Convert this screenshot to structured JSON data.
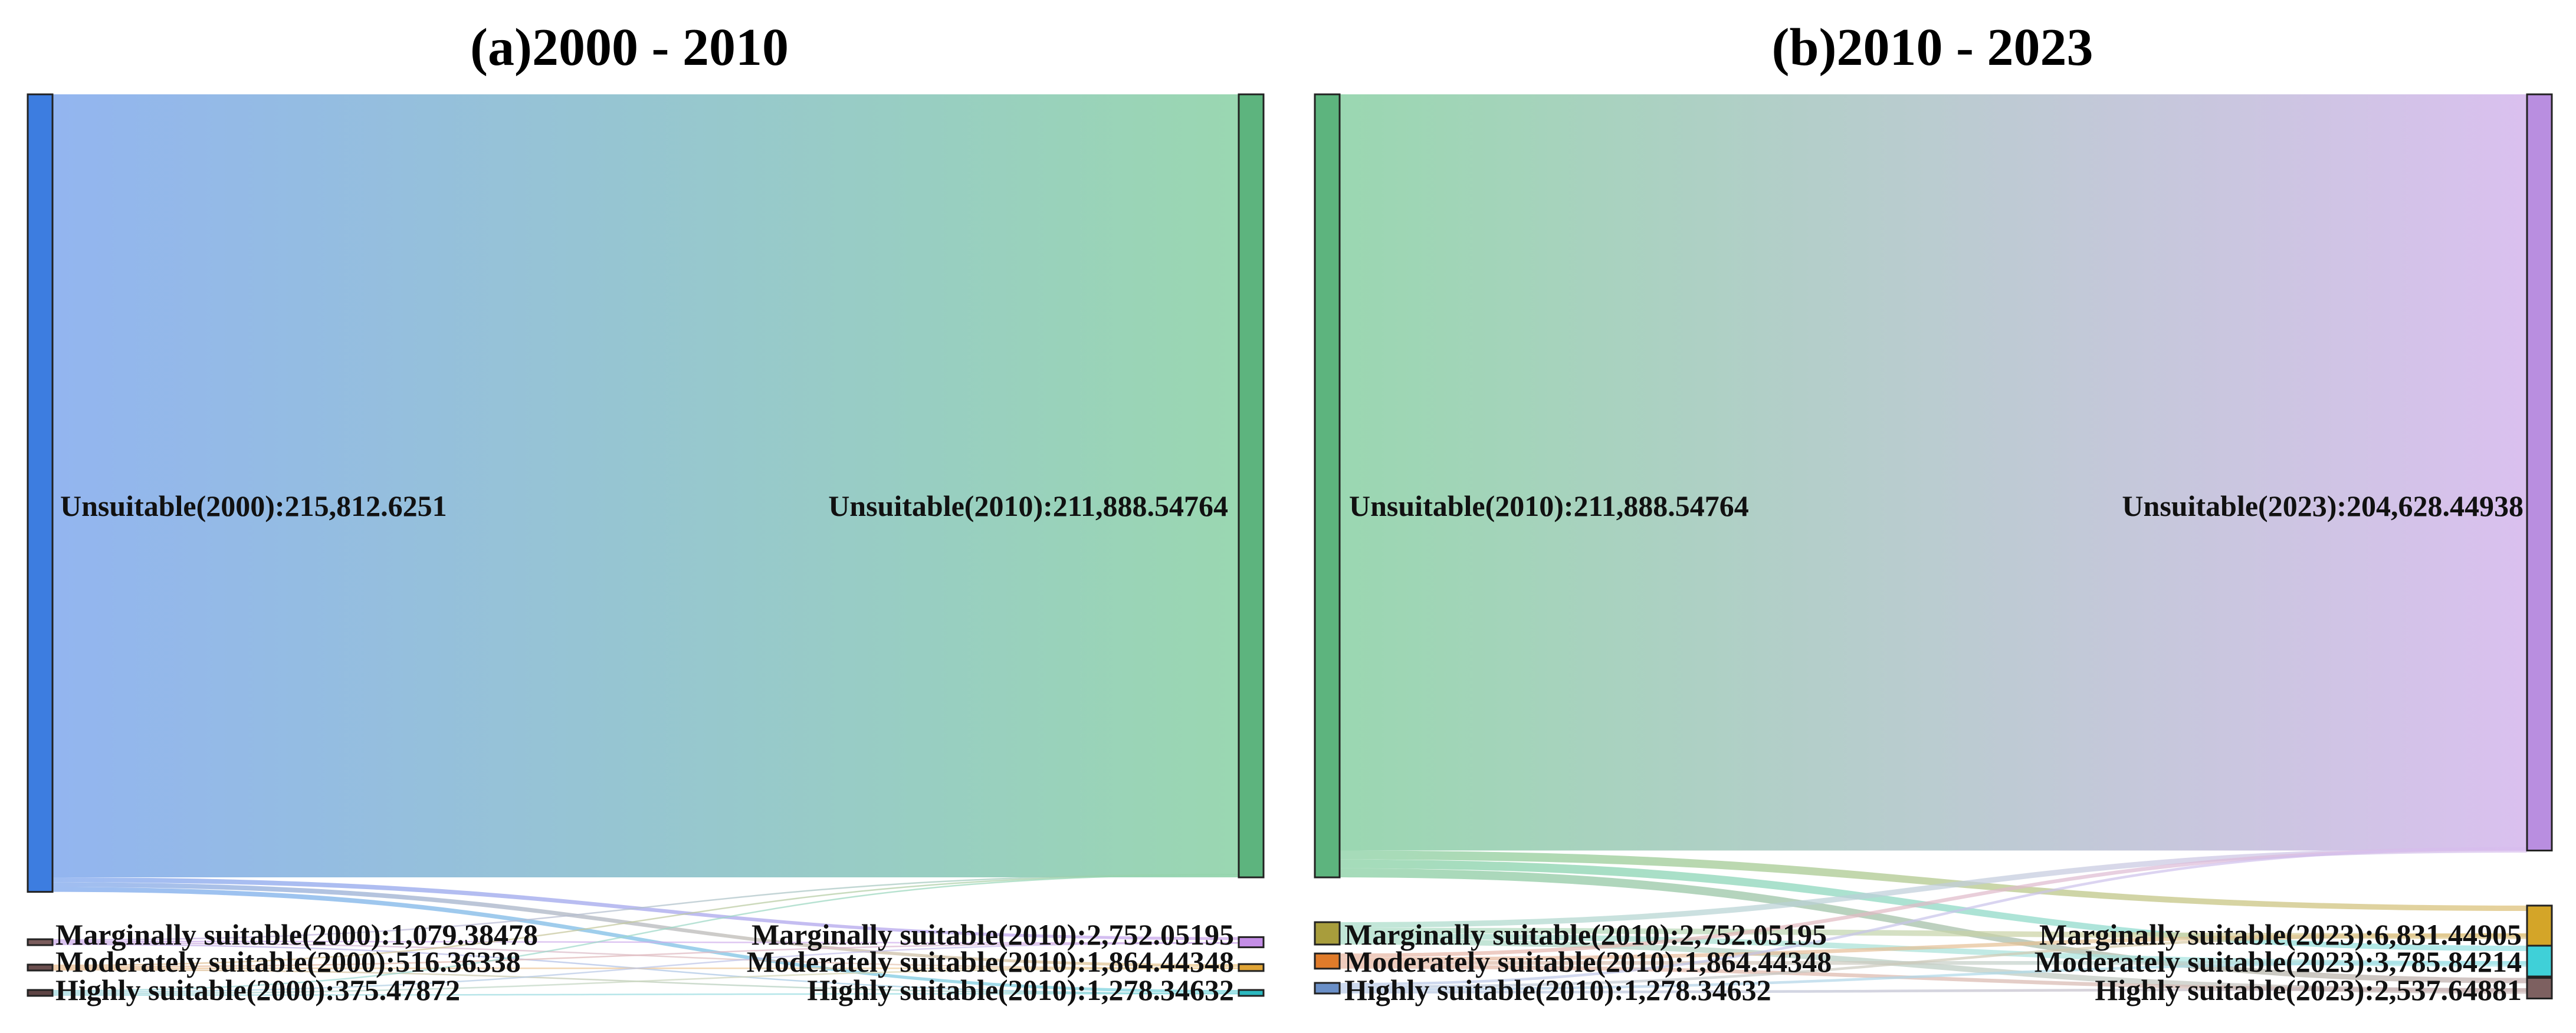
{
  "chart_data": [
    {
      "type": "sankey",
      "title": "(a)2000 - 2010",
      "left_nodes": [
        {
          "label": "Unsuitable(2000):215,812.6251",
          "value": 215812.6251,
          "color": "#3d7de0",
          "flow_color": "#8db1ef"
        },
        {
          "label": "Marginally suitable(2000):1,079.38478",
          "value": 1079.38478,
          "color": "#7a5c5c",
          "flow_color": "#c9a7e8"
        },
        {
          "label": "Moderately suitable(2000):516.36338",
          "value": 516.36338,
          "color": "#6b4f4f",
          "flow_color": "#e8b98a"
        },
        {
          "label": "Highly suitable(2000):375.47872",
          "value": 375.47872,
          "color": "#5e4444",
          "flow_color": "#9fd8de"
        }
      ],
      "right_nodes": [
        {
          "label": "Unsuitable(2010):211,888.54764",
          "value": 211888.54764,
          "color": "#5db47e",
          "flow_color": "#95d5ad"
        },
        {
          "label": "Marginally suitable(2010):2,752.05195",
          "value": 2752.05195,
          "color": "#c48ee6",
          "flow_color": "#d4b2ee"
        },
        {
          "label": "Moderately suitable(2010):1,864.44348",
          "value": 1864.44348,
          "color": "#e0a436",
          "flow_color": "#f0d09a"
        },
        {
          "label": "Highly suitable(2010):1,278.34632",
          "value": 1278.34632,
          "color": "#2bb8bf",
          "flow_color": "#8fdde1"
        }
      ]
    },
    {
      "type": "sankey",
      "title": "(b)2010 - 2023",
      "left_nodes": [
        {
          "label": "Unsuitable(2010):211,888.54764",
          "value": 211888.54764,
          "color": "#5db47e",
          "flow_color": "#95d5ad"
        },
        {
          "label": "Marginally suitable(2010):2,752.05195",
          "value": 2752.05195,
          "color": "#a89d3c",
          "flow_color": "#a6dcc6"
        },
        {
          "label": "Moderately suitable(2010):1,864.44348",
          "value": 1864.44348,
          "color": "#e07b2a",
          "flow_color": "#e8b5a0"
        },
        {
          "label": "Highly suitable(2010):1,278.34632",
          "value": 1278.34632,
          "color": "#6a8fc7",
          "flow_color": "#b7c9e6"
        }
      ],
      "right_nodes": [
        {
          "label": "Unsuitable(2023):204,628.44938",
          "value": 204628.44938,
          "color": "#b98ee0",
          "flow_color": "#d8bdee"
        },
        {
          "label": "Marginally suitable(2023):6,831.44905",
          "value": 6831.44905,
          "color": "#d4a528",
          "flow_color": "#e3c98a"
        },
        {
          "label": "Moderately suitable(2023):3,785.84214",
          "value": 3785.84214,
          "color": "#3fd0d8",
          "flow_color": "#a6e6ea"
        },
        {
          "label": "Highly suitable(2023):2,537.64881",
          "value": 2537.64881,
          "color": "#7d6060",
          "flow_color": "#cdbaba"
        }
      ]
    }
  ]
}
